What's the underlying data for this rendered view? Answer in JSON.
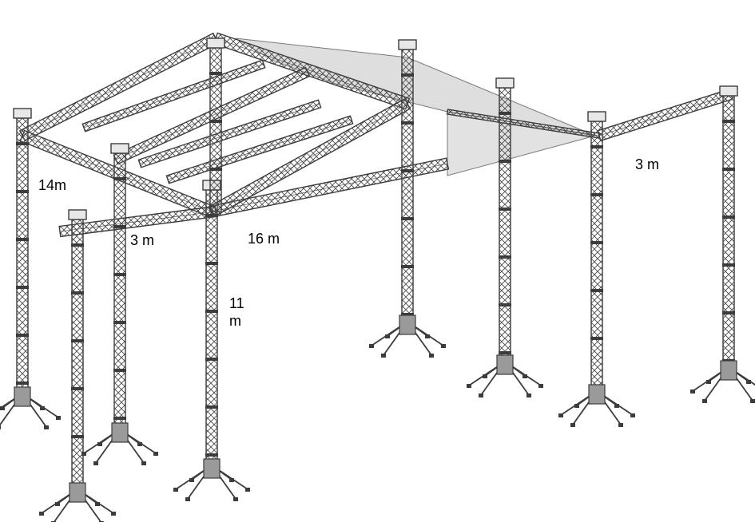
{
  "diagram": {
    "colors": {
      "truss": "#3c3c3c",
      "roof_membrane": "#dedede",
      "roof_edge": "#7a7a7a",
      "background": "#ffffff"
    },
    "labels": {
      "height_14m": "14m",
      "width_3m_left": "3 m",
      "length_16m": "16 m",
      "height_11m": "11\nm",
      "width_3m_right": "3 m"
    }
  }
}
